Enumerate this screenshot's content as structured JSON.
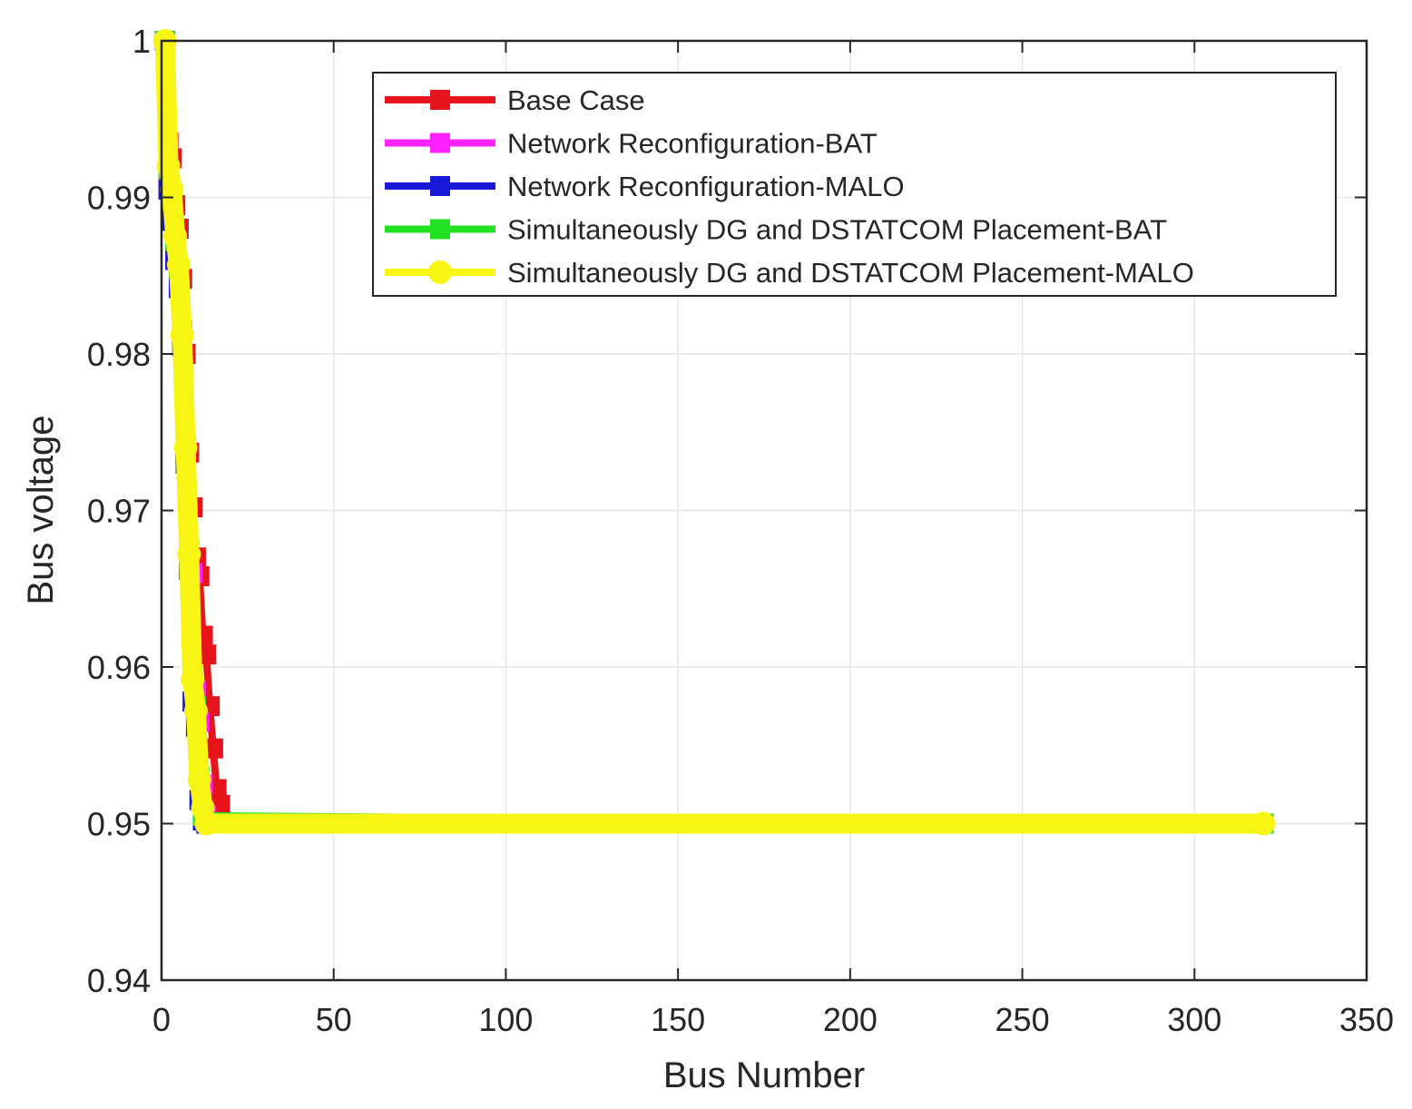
{
  "chart_data": {
    "type": "line",
    "title": "",
    "xlabel": "Bus Number",
    "ylabel": "Bus voltage",
    "xlim": [
      0,
      350
    ],
    "ylim": [
      0.94,
      1.0
    ],
    "xticks": [
      0,
      50,
      100,
      150,
      200,
      250,
      300,
      350
    ],
    "yticks": [
      0.94,
      0.95,
      0.96,
      0.97,
      0.98,
      0.99,
      1
    ],
    "xtick_labels": [
      "0",
      "50",
      "100",
      "150",
      "200",
      "250",
      "300",
      "350"
    ],
    "ytick_labels": [
      "0.94",
      "0.95",
      "0.96",
      "0.97",
      "0.98",
      "0.99",
      "1"
    ],
    "grid": true,
    "legend_position": "top-right",
    "series": [
      {
        "name": "Base Case",
        "color": "#e8141c",
        "marker": "square",
        "x": [
          1,
          2,
          3,
          4,
          5,
          6,
          7,
          8,
          9,
          10,
          11,
          12,
          13,
          14,
          15,
          16,
          17,
          18,
          320
        ],
        "y": [
          1.0,
          0.9935,
          0.9925,
          0.9895,
          0.988,
          0.9848,
          0.98,
          0.9737,
          0.9702,
          0.967,
          0.9658,
          0.962,
          0.9608,
          0.9575,
          0.9548,
          0.9522,
          0.9512,
          0.95,
          0.95
        ]
      },
      {
        "name": "Network Reconfiguration-BAT",
        "color": "#ff22ff",
        "marker": "square",
        "x": [
          1,
          2,
          3,
          4,
          5,
          6,
          7,
          8,
          9,
          10,
          11,
          12,
          13,
          14,
          320
        ],
        "y": [
          1.0,
          0.991,
          0.989,
          0.9862,
          0.9845,
          0.981,
          0.9735,
          0.967,
          0.966,
          0.9585,
          0.9565,
          0.9525,
          0.9505,
          0.95,
          0.95
        ]
      },
      {
        "name": "Network Reconfiguration-MALO",
        "color": "#1818d8",
        "marker": "square",
        "x": [
          1,
          2,
          3,
          4,
          5,
          6,
          7,
          8,
          9,
          10,
          11,
          12,
          13,
          320
        ],
        "y": [
          1.0,
          0.9905,
          0.9885,
          0.986,
          0.9842,
          0.9805,
          0.973,
          0.9662,
          0.9578,
          0.9562,
          0.9515,
          0.9502,
          0.95,
          0.95
        ]
      },
      {
        "name": "Simultaneously DG and DSTATCOM Placement-BAT",
        "color": "#22e022",
        "marker": "square",
        "x": [
          1,
          2,
          3,
          4,
          5,
          6,
          7,
          8,
          9,
          10,
          11,
          12,
          320
        ],
        "y": [
          1.0,
          0.9918,
          0.99,
          0.9872,
          0.9855,
          0.9815,
          0.9742,
          0.9675,
          0.9595,
          0.9575,
          0.953,
          0.9505,
          0.95
        ]
      },
      {
        "name": "Simultaneously DG and DSTATCOM Placement-MALO",
        "color": "#f8f414",
        "marker": "circle",
        "x": [
          1,
          2,
          3,
          4,
          5,
          6,
          7,
          8,
          9,
          10,
          11,
          12,
          13,
          320
        ],
        "y": [
          1.0,
          0.992,
          0.9905,
          0.9875,
          0.9857,
          0.9812,
          0.974,
          0.9672,
          0.9592,
          0.9572,
          0.9528,
          0.951,
          0.95,
          0.95
        ]
      }
    ]
  }
}
